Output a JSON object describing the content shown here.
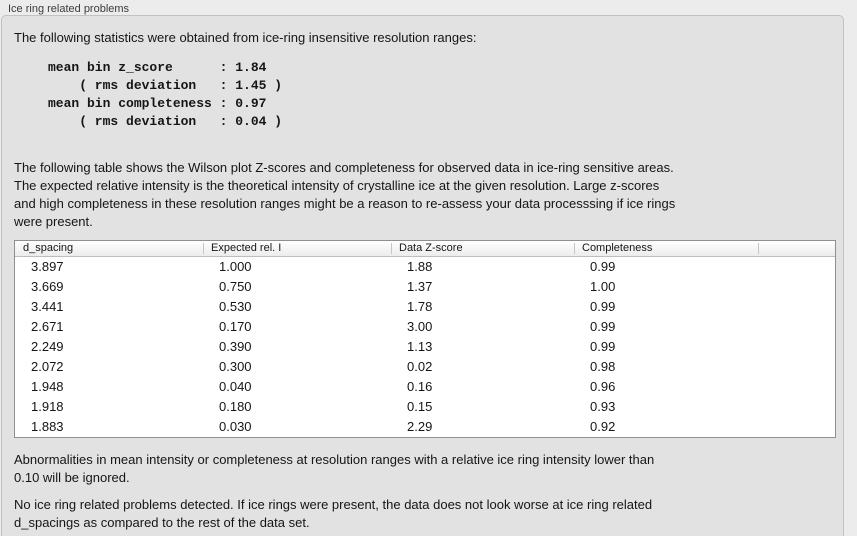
{
  "panel": {
    "title": "Ice ring related problems"
  },
  "intro": "The following statistics were obtained from ice-ring insensitive resolution ranges:",
  "stats": {
    "lines": [
      "mean bin z_score      : 1.84",
      "    ( rms deviation   : 1.45 )",
      "mean bin completeness : 0.97",
      "    ( rms deviation   : 0.04 )"
    ]
  },
  "description": "The following table shows the Wilson plot Z-scores and completeness for observed data in ice-ring sensitive areas.\nThe expected relative intensity is the theoretical intensity of crystalline ice at the given resolution. Large z-scores\nand high completeness in these resolution ranges might be a reason to re-assess your data processsing if ice rings\nwere present.",
  "table": {
    "columns": [
      "d_spacing",
      "Expected rel. I",
      "Data Z-score",
      "Completeness",
      ""
    ],
    "rows": [
      [
        "3.897",
        "1.000",
        "1.88",
        "0.99"
      ],
      [
        "3.669",
        "0.750",
        "1.37",
        "1.00"
      ],
      [
        "3.441",
        "0.530",
        "1.78",
        "0.99"
      ],
      [
        "2.671",
        "0.170",
        "3.00",
        "0.99"
      ],
      [
        "2.249",
        "0.390",
        "1.13",
        "0.99"
      ],
      [
        "2.072",
        "0.300",
        "0.02",
        "0.98"
      ],
      [
        "1.948",
        "0.040",
        "0.16",
        "0.96"
      ],
      [
        "1.918",
        "0.180",
        "0.15",
        "0.93"
      ],
      [
        "1.883",
        "0.030",
        "2.29",
        "0.92"
      ]
    ]
  },
  "footer": {
    "note1": "Abnormalities in mean intensity or completeness at resolution ranges with a relative ice ring intensity lower than\n0.10 will be ignored.",
    "note2": "No ice ring related problems detected. If ice rings were present, the data does not look worse at ice ring related\nd_spacings as compared to the rest of the data set."
  },
  "colors": {
    "page_bg": "#ececec",
    "panel_bg": "#e2e2e2",
    "panel_border": "#c2c2c2",
    "title_color": "#3c3c3c",
    "text_color": "#151515",
    "table_border": "#8f8f8f"
  }
}
